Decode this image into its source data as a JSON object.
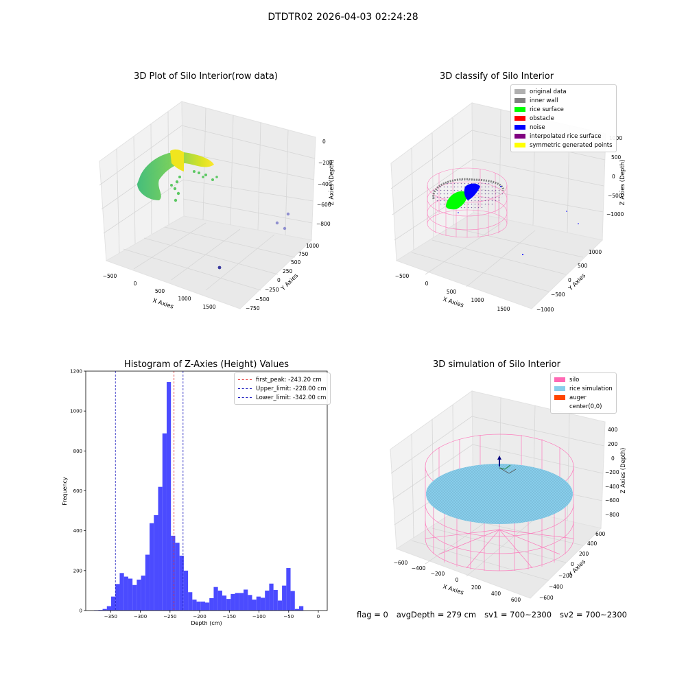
{
  "figure": {
    "suptitle": "DTDTR02 2026-04-03 02:24:28",
    "status": {
      "flag": "flag = 0",
      "avg_depth": "avgDepth = 279 cm",
      "sv1": "sv1 = 700~2300",
      "sv2": "sv2 = 700~2300"
    }
  },
  "colors": {
    "hist_bar": "#4b4bff",
    "first_peak": "#e53030",
    "limit_line": "#2020c0",
    "silo": "#ff69b4",
    "rice_simulation": "#87ceeb",
    "auger": "#ff4500",
    "pane": "#f0f0f0",
    "grid": "#d4d4d4"
  },
  "panels": {
    "raw": {
      "title": "3D Plot of Silo Interior(row data)",
      "xlabel": "X Axies",
      "ylabel": "Y Axies",
      "zlabel": "Z Axies (Depth)",
      "xticks": [
        "−500",
        "0",
        "500",
        "1000",
        "1500"
      ],
      "yticks": [
        "−750",
        "−500",
        "−250",
        "0",
        "250",
        "500",
        "750",
        "1000"
      ],
      "zticks": [
        "0",
        "−200",
        "−400",
        "−600",
        "−800"
      ]
    },
    "classify": {
      "title": "3D classify of Silo Interior",
      "xlabel": "X Axies",
      "ylabel": "Y Axies",
      "zlabel": "Z Axies (Depth)",
      "xticks": [
        "−500",
        "0",
        "500",
        "1000",
        "1500"
      ],
      "yticks": [
        "−1000",
        "−500",
        "0",
        "500",
        "1000"
      ],
      "zticks": [
        "1000",
        "500",
        "0",
        "−500",
        "−1000"
      ],
      "legend": [
        {
          "label": "original data",
          "color": "#b0b0b0"
        },
        {
          "label": "inner wall",
          "color": "#808080"
        },
        {
          "label": "rice surface",
          "color": "#00ff00"
        },
        {
          "label": "obstacle",
          "color": "#ff0000"
        },
        {
          "label": "noise",
          "color": "#0000ff"
        },
        {
          "label": "interpolated rice surface",
          "color": "#800080"
        },
        {
          "label": "symmetric generated points",
          "color": "#ffff00"
        }
      ]
    },
    "simulation": {
      "title": "3D simulation of Silo Interior",
      "xlabel": "X Axies",
      "ylabel": "Y Axies",
      "zlabel": "Z Axies (Depth)",
      "xticks": [
        "−600",
        "−400",
        "−200",
        "0",
        "200",
        "400",
        "600"
      ],
      "yticks": [
        "−600",
        "−400",
        "−200",
        "0",
        "200",
        "400",
        "600"
      ],
      "zticks": [
        "400",
        "200",
        "0",
        "−200",
        "−400",
        "−600",
        "−800"
      ],
      "legend": [
        {
          "label": "silo",
          "color": "#ff69b4"
        },
        {
          "label": "rice simulation",
          "color": "#87ceeb"
        },
        {
          "label": "auger",
          "color": "#ff4500"
        },
        {
          "label": "center(0,0)",
          "color": ""
        }
      ]
    }
  },
  "chart_data": {
    "type": "bar",
    "title": "Histogram of Z-Axies (Height) Values",
    "xlabel": "Depth (cm)",
    "ylabel": "Frequency",
    "xlim": [
      -392,
      15
    ],
    "ylim": [
      0,
      1200
    ],
    "xticks": [
      -350,
      -300,
      -250,
      -200,
      -150,
      -100,
      -50,
      0
    ],
    "yticks": [
      0,
      200,
      400,
      600,
      800,
      1000,
      1200
    ],
    "bin_start": -378,
    "bin_width": 7.2,
    "values": [
      2,
      3,
      8,
      22,
      70,
      133,
      188,
      170,
      160,
      128,
      155,
      175,
      280,
      438,
      478,
      620,
      888,
      1145,
      375,
      340,
      275,
      200,
      92,
      55,
      45,
      45,
      40,
      62,
      118,
      100,
      75,
      58,
      83,
      88,
      88,
      105,
      78,
      55,
      70,
      64,
      100,
      135,
      103,
      50,
      125,
      213,
      98,
      8,
      22
    ],
    "grid": false,
    "legend_position": "top-right",
    "lines": [
      {
        "name": "first_peak: -243.20 cm",
        "x": -243.2,
        "color": "#e53030"
      },
      {
        "name": "Upper_limit: -228.00 cm",
        "x": -228.0,
        "color": "#2020c0"
      },
      {
        "name": "Lower_limit: -342.00 cm",
        "x": -342.0,
        "color": "#2020c0"
      }
    ]
  }
}
